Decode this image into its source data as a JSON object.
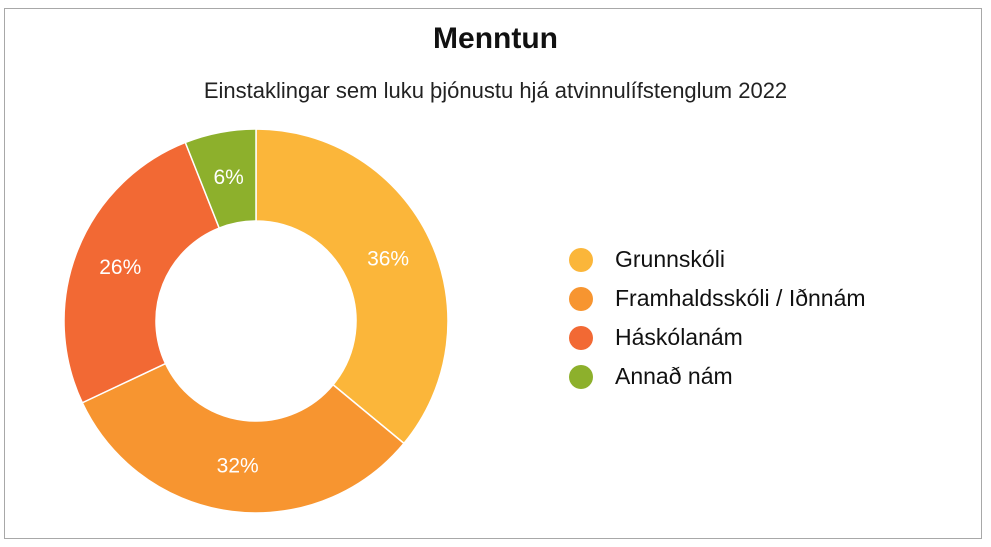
{
  "chart_data": {
    "type": "pie",
    "title": "Menntun",
    "subtitle": "Einstaklingar sem luku þjónustu hjá atvinnulífstenglum 2022",
    "categories": [
      "Grunnskóli",
      "Framhaldsskóli / Iðnnám",
      "Háskólanám",
      "Annað nám"
    ],
    "values": [
      36,
      32,
      26,
      6
    ],
    "value_labels": [
      "36%",
      "32%",
      "26%",
      "6%"
    ],
    "colors": [
      "#FBB63A",
      "#F79530",
      "#F26934",
      "#8DB02C"
    ],
    "donut": true,
    "legend_position": "right"
  }
}
